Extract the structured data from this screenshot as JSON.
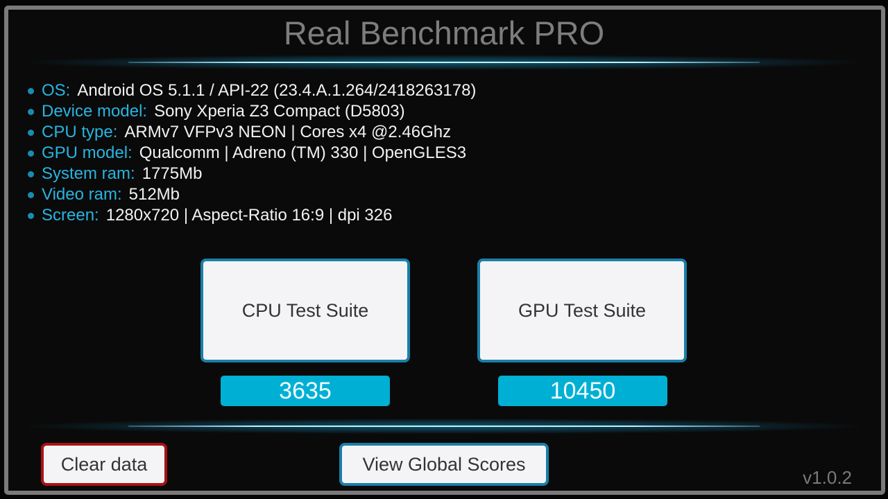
{
  "title": "Real Benchmark PRO",
  "specs": [
    {
      "label": "OS:",
      "value": "Android OS 5.1.1 / API-22 (23.4.A.1.264/2418263178)"
    },
    {
      "label": "Device model:",
      "value": "Sony Xperia Z3 Compact (D5803)"
    },
    {
      "label": "CPU type:",
      "value": "ARMv7 VFPv3 NEON | Cores x4 @2.46Ghz"
    },
    {
      "label": "GPU model:",
      "value": "Qualcomm | Adreno (TM) 330 | OpenGLES3"
    },
    {
      "label": "System ram:",
      "value": "1775Mb"
    },
    {
      "label": "Video ram:",
      "value": "512Mb"
    },
    {
      "label": "Screen:",
      "value": "1280x720 | Aspect-Ratio 16:9 | dpi 326"
    }
  ],
  "cpu": {
    "label": "CPU Test Suite",
    "score": "3635"
  },
  "gpu": {
    "label": "GPU Test Suite",
    "score": "10450"
  },
  "buttons": {
    "clear": "Clear data",
    "global": "View Global Scores"
  },
  "version": "v1.0.2",
  "colors": {
    "accent": "#00b0d4",
    "label": "#27b5e0",
    "danger": "#a81414"
  }
}
